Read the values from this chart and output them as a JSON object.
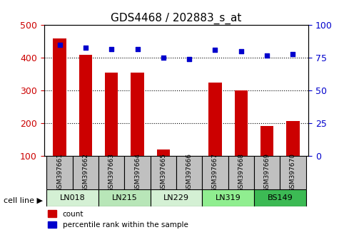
{
  "title": "GDS4468 / 202883_s_at",
  "samples": [
    "GSM397661",
    "GSM397662",
    "GSM397663",
    "GSM397664",
    "GSM397665",
    "GSM397666",
    "GSM397667",
    "GSM397668",
    "GSM397669",
    "GSM397670"
  ],
  "counts": [
    460,
    410,
    355,
    355,
    120,
    100,
    325,
    300,
    192,
    207
  ],
  "percentile_ranks": [
    85,
    83,
    82,
    82,
    75,
    74,
    81,
    80,
    77,
    78
  ],
  "cell_lines": [
    {
      "name": "LN018",
      "samples": [
        0,
        1
      ],
      "color": "#d4edda"
    },
    {
      "name": "LN215",
      "samples": [
        2,
        3
      ],
      "color": "#d4edda"
    },
    {
      "name": "LN229",
      "samples": [
        4,
        5
      ],
      "color": "#d4edda"
    },
    {
      "name": "LN319",
      "samples": [
        6,
        7
      ],
      "color": "#90ee90"
    },
    {
      "name": "BS149",
      "samples": [
        8,
        9
      ],
      "color": "#3cba54"
    }
  ],
  "ylim_left": [
    100,
    500
  ],
  "ylim_right": [
    0,
    100
  ],
  "yticks_left": [
    100,
    200,
    300,
    400,
    500
  ],
  "yticks_right": [
    0,
    25,
    50,
    75,
    100
  ],
  "bar_color": "#cc0000",
  "scatter_color": "#0000cc",
  "bar_width": 0.5,
  "grid_color": "black",
  "bg_plot": "white",
  "bg_sample_row": "#c0c0c0",
  "bg_cellline_colors": [
    "#d4f0d4",
    "#b8e8b8",
    "#6eda6e"
  ],
  "cell_line_label": "cell line ▶"
}
